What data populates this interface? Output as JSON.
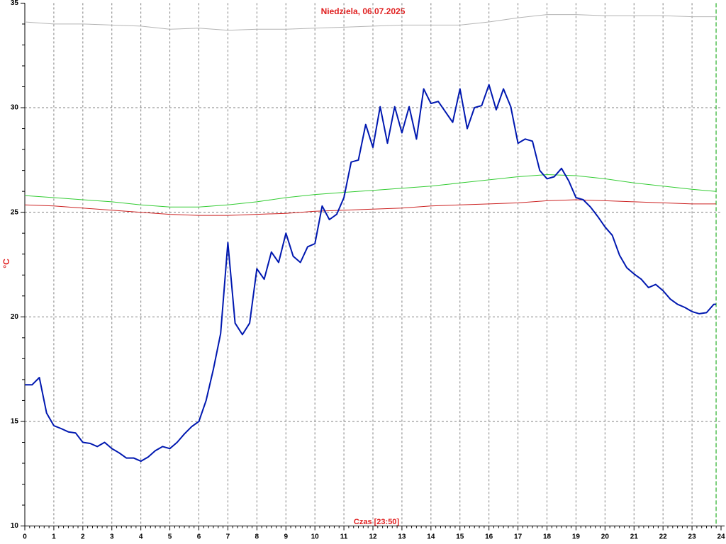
{
  "chart_data": {
    "type": "line",
    "title": "Niedziela, 06.07.2025",
    "ylabel": "°C",
    "xlabel": "Czas [23:50]",
    "xlim": [
      0,
      24
    ],
    "xticks": [
      0,
      1,
      2,
      3,
      4,
      5,
      6,
      7,
      8,
      9,
      10,
      11,
      12,
      13,
      14,
      15,
      16,
      17,
      18,
      19,
      20,
      21,
      22,
      23,
      24
    ],
    "ylim": [
      10,
      35
    ],
    "yticks": [
      10,
      15,
      20,
      25,
      30,
      35
    ],
    "grid": true,
    "current_x": 23.83,
    "series": [
      {
        "color": "#b4b4b4",
        "x": [
          0,
          1,
          2,
          3,
          4,
          5,
          6,
          7,
          8,
          9,
          10,
          11,
          12,
          13,
          14,
          15,
          16,
          17,
          18,
          19,
          20,
          21,
          22,
          23,
          23.83
        ],
        "values": [
          34.1,
          34.0,
          34.0,
          33.95,
          33.9,
          33.75,
          33.8,
          33.7,
          33.75,
          33.75,
          33.8,
          33.85,
          33.9,
          33.95,
          33.95,
          33.95,
          34.1,
          34.3,
          34.45,
          34.45,
          34.4,
          34.4,
          34.4,
          34.35,
          34.35
        ]
      },
      {
        "color": "#33cc33",
        "x": [
          0,
          1,
          2,
          3,
          4,
          5,
          6,
          7,
          8,
          9,
          10,
          11,
          12,
          13,
          14,
          15,
          16,
          17,
          18,
          19,
          20,
          21,
          22,
          23,
          23.83
        ],
        "values": [
          25.8,
          25.7,
          25.6,
          25.5,
          25.35,
          25.25,
          25.25,
          25.35,
          25.5,
          25.7,
          25.85,
          25.95,
          26.05,
          26.15,
          26.25,
          26.4,
          26.55,
          26.7,
          26.8,
          26.75,
          26.6,
          26.4,
          26.25,
          26.1,
          26.0
        ]
      },
      {
        "color": "#cc2222",
        "x": [
          0,
          1,
          2,
          3,
          4,
          5,
          6,
          7,
          8,
          9,
          10,
          11,
          12,
          13,
          14,
          15,
          16,
          17,
          18,
          19,
          20,
          21,
          22,
          23,
          23.83
        ],
        "values": [
          25.35,
          25.3,
          25.2,
          25.1,
          25.0,
          24.9,
          24.85,
          24.85,
          24.9,
          24.95,
          25.05,
          25.1,
          25.15,
          25.2,
          25.3,
          25.35,
          25.4,
          25.45,
          25.55,
          25.6,
          25.55,
          25.5,
          25.45,
          25.4,
          25.4
        ]
      },
      {
        "color": "#0018b0",
        "x": [
          0,
          0.25,
          0.5,
          0.75,
          1,
          1.25,
          1.5,
          1.75,
          2,
          2.25,
          2.5,
          2.75,
          3,
          3.25,
          3.5,
          3.75,
          4,
          4.25,
          4.5,
          4.75,
          5,
          5.25,
          5.5,
          5.75,
          6,
          6.25,
          6.5,
          6.75,
          7,
          7.25,
          7.5,
          7.75,
          8,
          8.25,
          8.5,
          8.75,
          9,
          9.25,
          9.5,
          9.75,
          10,
          10.25,
          10.5,
          10.75,
          11,
          11.25,
          11.5,
          11.75,
          12,
          12.25,
          12.5,
          12.75,
          13,
          13.25,
          13.5,
          13.75,
          14,
          14.25,
          14.5,
          14.75,
          15,
          15.25,
          15.5,
          15.75,
          16,
          16.25,
          16.5,
          16.75,
          17,
          17.25,
          17.5,
          17.75,
          18,
          18.25,
          18.5,
          18.75,
          19,
          19.25,
          19.5,
          19.75,
          20,
          20.25,
          20.5,
          20.75,
          21,
          21.25,
          21.5,
          21.75,
          22,
          22.25,
          22.5,
          22.75,
          23,
          23.25,
          23.5,
          23.75,
          23.83
        ],
        "values": [
          16.75,
          16.75,
          17.1,
          15.4,
          14.8,
          14.66,
          14.5,
          14.45,
          14.0,
          13.95,
          13.8,
          14.0,
          13.7,
          13.5,
          13.25,
          13.25,
          13.1,
          13.3,
          13.6,
          13.8,
          13.7,
          14.0,
          14.4,
          14.75,
          15.0,
          16.0,
          17.5,
          19.2,
          23.55,
          19.7,
          19.15,
          19.7,
          22.3,
          21.8,
          23.1,
          22.6,
          24.0,
          22.9,
          22.6,
          23.35,
          23.5,
          25.3,
          24.65,
          24.9,
          25.7,
          27.4,
          27.5,
          29.2,
          28.1,
          30.05,
          28.3,
          30.05,
          28.8,
          30.05,
          28.5,
          30.9,
          30.2,
          30.3,
          29.8,
          29.3,
          30.9,
          29.0,
          30.0,
          30.1,
          31.1,
          29.9,
          30.9,
          30.05,
          28.3,
          28.5,
          28.4,
          27.0,
          26.6,
          26.7,
          27.1,
          26.5,
          25.7,
          25.6,
          25.25,
          24.8,
          24.3,
          23.9,
          22.95,
          22.35,
          22.05,
          21.8,
          21.4,
          21.55,
          21.25,
          20.85,
          20.6,
          20.45,
          20.25,
          20.15,
          20.2,
          20.6,
          20.6
        ]
      }
    ]
  }
}
